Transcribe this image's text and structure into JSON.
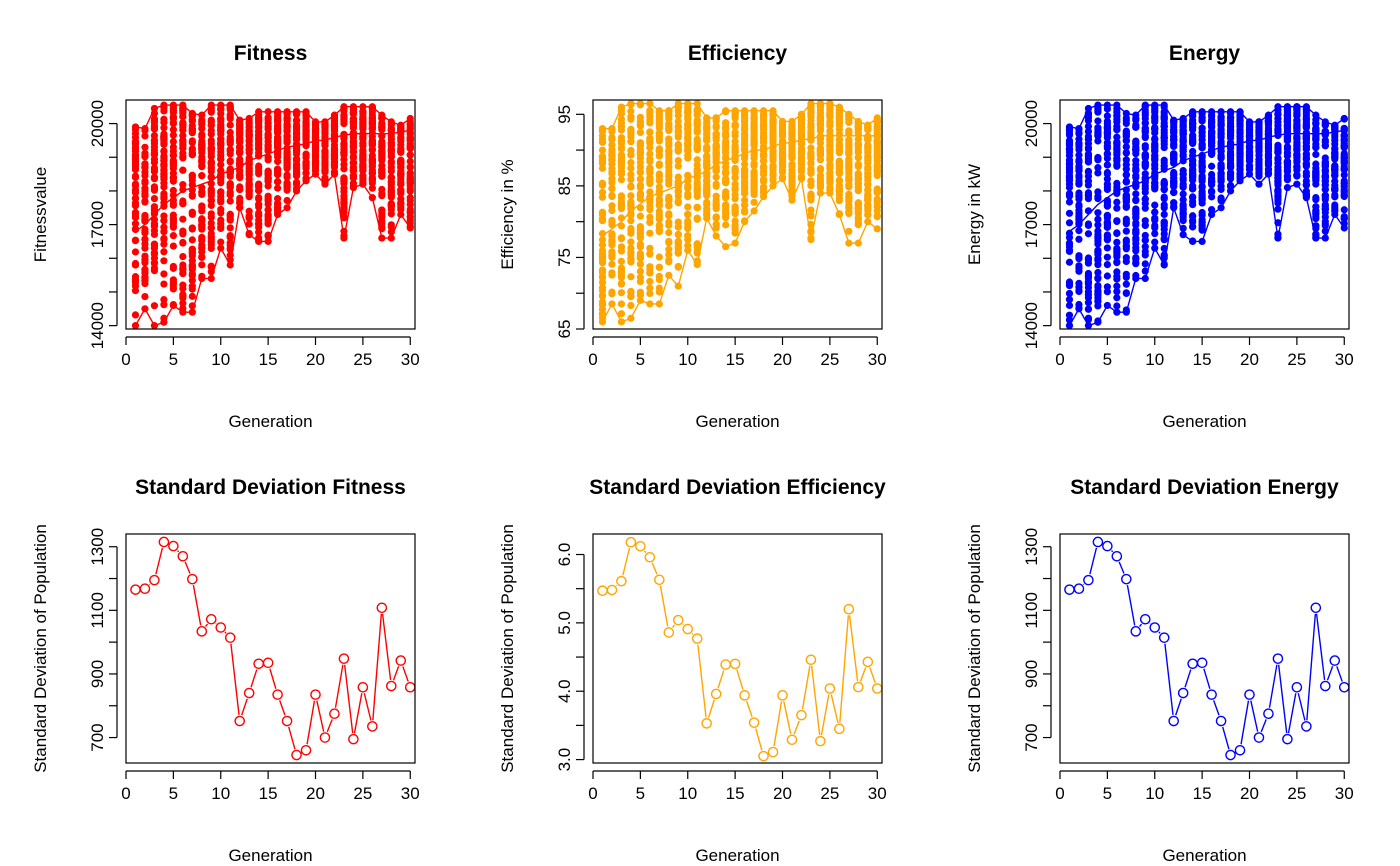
{
  "colors": {
    "red": "#ff0000",
    "orange": "#ffa500",
    "blue": "#0000ff"
  },
  "chart_data": [
    {
      "type": "scatter",
      "title": "Fitness",
      "xlabel": "Generation",
      "ylabel": "Fitnessvalue",
      "color": "#ff0000",
      "marker": "filled-circle",
      "xlim": [
        0,
        30.5
      ],
      "ylim": [
        13900,
        20700
      ],
      "xticks": [
        0,
        5,
        10,
        15,
        20,
        25,
        30
      ],
      "yticks": [
        14000,
        17000,
        20000
      ],
      "yticks_minor": [
        15000,
        16000,
        18000,
        19000
      ],
      "ytick_labels": [
        "14000",
        "17000",
        "20000"
      ],
      "series": [
        {
          "values_max": [
            19900,
            19850,
            20450,
            20550,
            20550,
            20550,
            20300,
            20250,
            20550,
            20550,
            20550,
            20100,
            20150,
            20350,
            20350,
            20350,
            20350,
            20350,
            20350,
            20050,
            20050,
            20250,
            20500,
            20500,
            20500,
            20500,
            20250,
            20050,
            19950,
            20150
          ],
          "values_min": [
            14000,
            14500,
            14000,
            14100,
            14600,
            14400,
            14400,
            15400,
            15400,
            16300,
            15800,
            17500,
            16700,
            16500,
            16500,
            17300,
            17500,
            18000,
            18300,
            18500,
            18200,
            18500,
            16600,
            18100,
            18200,
            17800,
            16600,
            16600,
            17300,
            16900
          ],
          "values_mean": [
            16800,
            17000,
            17300,
            17600,
            17800,
            18000,
            18100,
            18200,
            18300,
            18500,
            18600,
            18700,
            18900,
            19000,
            19100,
            19200,
            19300,
            19350,
            19400,
            19500,
            19500,
            19600,
            19650,
            19700,
            19700,
            19700,
            19700,
            19700,
            19750,
            19800
          ]
        }
      ]
    },
    {
      "type": "scatter",
      "title": "Efficiency",
      "xlabel": "Generation",
      "ylabel": "Efficiency in %",
      "color": "#ffa500",
      "marker": "filled-circle",
      "xlim": [
        0,
        30.5
      ],
      "ylim": [
        65,
        97
      ],
      "xticks": [
        0,
        5,
        10,
        15,
        20,
        25,
        30
      ],
      "yticks": [
        65,
        75,
        85,
        95
      ],
      "yticks_minor": [
        70,
        80,
        90
      ],
      "ytick_labels": [
        "65",
        "75",
        "85",
        "95"
      ],
      "series": [
        {
          "values_max": [
            93,
            93,
            96,
            96.5,
            96.5,
            96.5,
            95.5,
            95.5,
            96.5,
            96.5,
            96.5,
            94.5,
            94.5,
            95.5,
            95.5,
            95.5,
            95.5,
            95.5,
            95.5,
            94,
            94,
            95,
            96.5,
            96.5,
            96.5,
            96,
            95,
            94,
            93.5,
            94.5
          ],
          "values_min": [
            66,
            68.5,
            66,
            66.5,
            69,
            68.5,
            68.5,
            72.5,
            71,
            76,
            74,
            80.5,
            78,
            76.5,
            77,
            80,
            81.5,
            83.5,
            85,
            86,
            83,
            86,
            77.5,
            84,
            84,
            81,
            77,
            77,
            80,
            79
          ],
          "values_mean": [
            78,
            79,
            80,
            81.5,
            82.5,
            83.5,
            84,
            84.5,
            85,
            86,
            86.5,
            87,
            88,
            88.5,
            89,
            89.5,
            90,
            90,
            90.5,
            91,
            91,
            91.5,
            91.5,
            92,
            92,
            92,
            92,
            92,
            92,
            92
          ]
        }
      ]
    },
    {
      "type": "scatter",
      "title": "Energy",
      "xlabel": "Generation",
      "ylabel": "Energy in kW",
      "color": "#0000ff",
      "marker": "filled-circle",
      "xlim": [
        0,
        30.5
      ],
      "ylim": [
        13900,
        20700
      ],
      "xticks": [
        0,
        5,
        10,
        15,
        20,
        25,
        30
      ],
      "yticks": [
        14000,
        17000,
        20000
      ],
      "yticks_minor": [
        15000,
        16000,
        18000,
        19000
      ],
      "ytick_labels": [
        "14000",
        "17000",
        "20000"
      ],
      "series": [
        {
          "values_max": [
            19900,
            19850,
            20450,
            20550,
            20550,
            20550,
            20300,
            20250,
            20550,
            20550,
            20550,
            20100,
            20150,
            20350,
            20350,
            20350,
            20350,
            20350,
            20350,
            20050,
            20050,
            20250,
            20500,
            20500,
            20500,
            20500,
            20250,
            20050,
            19950,
            20150
          ],
          "values_min": [
            14000,
            14500,
            14000,
            14100,
            14600,
            14400,
            14400,
            15400,
            15400,
            16300,
            15800,
            17500,
            16700,
            16500,
            16500,
            17300,
            17500,
            18000,
            18300,
            18500,
            18200,
            18500,
            16600,
            18100,
            18200,
            17800,
            16600,
            16600,
            17300,
            16900
          ],
          "values_mean": [
            16800,
            17000,
            17300,
            17600,
            17800,
            18000,
            18100,
            18200,
            18300,
            18500,
            18600,
            18700,
            18900,
            19000,
            19100,
            19200,
            19300,
            19350,
            19400,
            19500,
            19500,
            19600,
            19650,
            19700,
            19700,
            19700,
            19700,
            19700,
            19750,
            19800
          ]
        }
      ]
    },
    {
      "type": "line",
      "title": "Standard Deviation Fitness",
      "xlabel": "Generation",
      "ylabel": "Standard Deviation of Population",
      "color": "#ff0000",
      "marker": "open-circle",
      "xlim": [
        0,
        30.5
      ],
      "ylim": [
        620,
        1340
      ],
      "xticks": [
        0,
        5,
        10,
        15,
        20,
        25,
        30
      ],
      "yticks": [
        700,
        900,
        1100,
        1300
      ],
      "yticks_minor": [
        800,
        1000,
        1200
      ],
      "ytick_labels": [
        "700",
        "900",
        "1100",
        "1300"
      ],
      "x": [
        1,
        2,
        3,
        4,
        5,
        6,
        7,
        8,
        9,
        10,
        11,
        12,
        13,
        14,
        15,
        16,
        17,
        18,
        19,
        20,
        21,
        22,
        23,
        24,
        25,
        26,
        27,
        28,
        29,
        30
      ],
      "values": [
        1165,
        1168,
        1195,
        1315,
        1302,
        1270,
        1198,
        1034,
        1072,
        1046,
        1014,
        752,
        840,
        932,
        935,
        835,
        752,
        645,
        660,
        835,
        700,
        775,
        948,
        695,
        858,
        735,
        1108,
        862,
        942,
        858
      ]
    },
    {
      "type": "line",
      "title": "Standard Deviation Efficiency",
      "xlabel": "Generation",
      "ylabel": "Standard Deviation of Population",
      "color": "#ffa500",
      "marker": "open-circle",
      "xlim": [
        0,
        30.5
      ],
      "ylim": [
        2.95,
        6.3
      ],
      "xticks": [
        0,
        5,
        10,
        15,
        20,
        25,
        30
      ],
      "yticks": [
        3.0,
        4.0,
        5.0,
        6.0
      ],
      "yticks_minor": [
        3.5,
        4.5,
        5.5
      ],
      "ytick_labels": [
        "3.0",
        "4.0",
        "5.0",
        "6.0"
      ],
      "x": [
        1,
        2,
        3,
        4,
        5,
        6,
        7,
        8,
        9,
        10,
        11,
        12,
        13,
        14,
        15,
        16,
        17,
        18,
        19,
        20,
        21,
        22,
        23,
        24,
        25,
        26,
        27,
        28,
        29,
        30
      ],
      "values": [
        5.47,
        5.48,
        5.61,
        6.18,
        6.12,
        5.96,
        5.63,
        4.86,
        5.04,
        4.91,
        4.77,
        3.53,
        3.96,
        4.39,
        4.4,
        3.94,
        3.54,
        3.05,
        3.11,
        3.94,
        3.29,
        3.65,
        4.46,
        3.27,
        4.04,
        3.45,
        5.2,
        4.06,
        4.43,
        4.04
      ]
    },
    {
      "type": "line",
      "title": "Standard Deviation Energy",
      "xlabel": "Generation",
      "ylabel": "Standard Deviation of Population",
      "color": "#0000ff",
      "marker": "open-circle",
      "xlim": [
        0,
        30.5
      ],
      "ylim": [
        620,
        1340
      ],
      "xticks": [
        0,
        5,
        10,
        15,
        20,
        25,
        30
      ],
      "yticks": [
        700,
        900,
        1100,
        1300
      ],
      "yticks_minor": [
        800,
        1000,
        1200
      ],
      "ytick_labels": [
        "700",
        "900",
        "1100",
        "1300"
      ],
      "x": [
        1,
        2,
        3,
        4,
        5,
        6,
        7,
        8,
        9,
        10,
        11,
        12,
        13,
        14,
        15,
        16,
        17,
        18,
        19,
        20,
        21,
        22,
        23,
        24,
        25,
        26,
        27,
        28,
        29,
        30
      ],
      "values": [
        1165,
        1168,
        1195,
        1315,
        1302,
        1270,
        1198,
        1034,
        1072,
        1046,
        1014,
        752,
        840,
        932,
        935,
        835,
        752,
        645,
        660,
        835,
        700,
        775,
        948,
        695,
        858,
        735,
        1108,
        862,
        942,
        858
      ]
    }
  ]
}
